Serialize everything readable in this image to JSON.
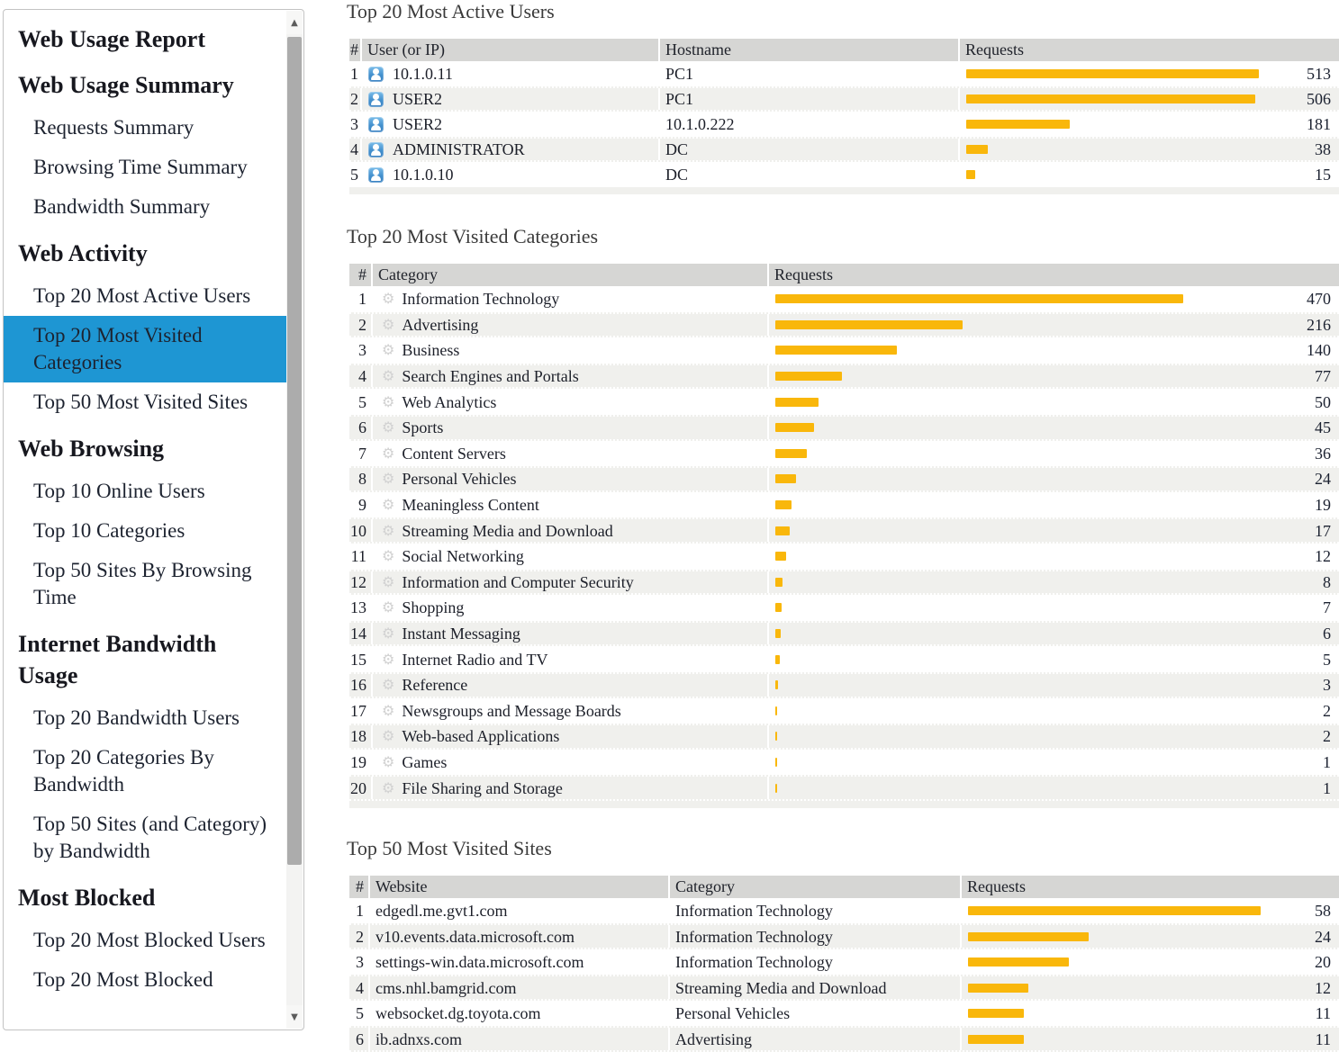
{
  "colors": {
    "selected_bg": "#1e96d3",
    "bar": "#f9b70b",
    "table_header_bg": "#d6d6d4",
    "row_stripe": "#f0f0ed"
  },
  "sidebar": {
    "items": [
      {
        "type": "title",
        "label": "Web Usage Report"
      },
      {
        "type": "section",
        "label": "Web Usage Summary"
      },
      {
        "type": "link",
        "label": "Requests Summary"
      },
      {
        "type": "link",
        "label": "Browsing Time Summary"
      },
      {
        "type": "link",
        "label": "Bandwidth Summary"
      },
      {
        "type": "section",
        "label": "Web Activity"
      },
      {
        "type": "link",
        "label": "Top 20 Most Active Users"
      },
      {
        "type": "link",
        "label": "Top 20 Most Visited Categories",
        "selected": true
      },
      {
        "type": "link",
        "label": "Top 50 Most Visited Sites"
      },
      {
        "type": "section",
        "label": "Web Browsing"
      },
      {
        "type": "link",
        "label": "Top 10 Online Users"
      },
      {
        "type": "link",
        "label": "Top 10 Categories"
      },
      {
        "type": "link",
        "label": "Top 50 Sites By Browsing Time"
      },
      {
        "type": "section",
        "label": "Internet Bandwidth Usage"
      },
      {
        "type": "link",
        "label": "Top 20 Bandwidth Users"
      },
      {
        "type": "link",
        "label": "Top 20 Categories By Bandwidth"
      },
      {
        "type": "link",
        "label": "Top 50 Sites (and Category) by Bandwidth"
      },
      {
        "type": "section",
        "label": "Most Blocked"
      },
      {
        "type": "link",
        "label": "Top 20 Most Blocked Users"
      },
      {
        "type": "link",
        "label": "Top 20 Most Blocked"
      }
    ]
  },
  "tables": [
    {
      "title": "Top 20 Most Active Users",
      "headers": [
        "#",
        "User (or IP)",
        "Hostname",
        "Requests"
      ],
      "rows": [
        {
          "rank": "1",
          "user": "10.1.0.11",
          "hostname": "PC1",
          "requests": 513
        },
        {
          "rank": "2",
          "user": "USER2",
          "hostname": "PC1",
          "requests": 506
        },
        {
          "rank": "3",
          "user": "USER2",
          "hostname": "10.1.0.222",
          "requests": 181
        },
        {
          "rank": "4",
          "user": "ADMINISTRATOR",
          "hostname": "DC",
          "requests": 38
        },
        {
          "rank": "5",
          "user": "10.1.0.10",
          "hostname": "DC",
          "requests": 15
        }
      ]
    },
    {
      "title": "Top 20 Most Visited Categories",
      "headers": [
        "#",
        "Category",
        "Requests"
      ],
      "rows": [
        {
          "rank": "1",
          "category": "Information Technology",
          "requests": 470
        },
        {
          "rank": "2",
          "category": "Advertising",
          "requests": 216
        },
        {
          "rank": "3",
          "category": "Business",
          "requests": 140
        },
        {
          "rank": "4",
          "category": "Search Engines and Portals",
          "requests": 77
        },
        {
          "rank": "5",
          "category": "Web Analytics",
          "requests": 50
        },
        {
          "rank": "6",
          "category": "Sports",
          "requests": 45
        },
        {
          "rank": "7",
          "category": "Content Servers",
          "requests": 36
        },
        {
          "rank": "8",
          "category": "Personal Vehicles",
          "requests": 24
        },
        {
          "rank": "9",
          "category": "Meaningless Content",
          "requests": 19
        },
        {
          "rank": "10",
          "category": "Streaming Media and Download",
          "requests": 17
        },
        {
          "rank": "11",
          "category": "Social Networking",
          "requests": 12
        },
        {
          "rank": "12",
          "category": "Information and Computer Security",
          "requests": 8
        },
        {
          "rank": "13",
          "category": "Shopping",
          "requests": 7
        },
        {
          "rank": "14",
          "category": "Instant Messaging",
          "requests": 6
        },
        {
          "rank": "15",
          "category": "Internet Radio and TV",
          "requests": 5
        },
        {
          "rank": "16",
          "category": "Reference",
          "requests": 3
        },
        {
          "rank": "17",
          "category": "Newsgroups and Message Boards",
          "requests": 2
        },
        {
          "rank": "18",
          "category": "Web-based Applications",
          "requests": 2
        },
        {
          "rank": "19",
          "category": "Games",
          "requests": 1
        },
        {
          "rank": "20",
          "category": "File Sharing and Storage",
          "requests": 1
        }
      ]
    },
    {
      "title": "Top 50 Most Visited Sites",
      "headers": [
        "#",
        "Website",
        "Category",
        "Requests"
      ],
      "rows": [
        {
          "rank": "1",
          "website": "edgedl.me.gvt1.com",
          "category": "Information Technology",
          "requests": 58
        },
        {
          "rank": "2",
          "website": "v10.events.data.microsoft.com",
          "category": "Information Technology",
          "requests": 24
        },
        {
          "rank": "3",
          "website": "settings-win.data.microsoft.com",
          "category": "Information Technology",
          "requests": 20
        },
        {
          "rank": "4",
          "website": "cms.nhl.bamgrid.com",
          "category": "Streaming Media and Download",
          "requests": 12
        },
        {
          "rank": "5",
          "website": "websocket.dg.toyota.com",
          "category": "Personal Vehicles",
          "requests": 11
        },
        {
          "rank": "6",
          "website": "ib.adnxs.com",
          "category": "Advertising",
          "requests": 11
        }
      ]
    }
  ]
}
